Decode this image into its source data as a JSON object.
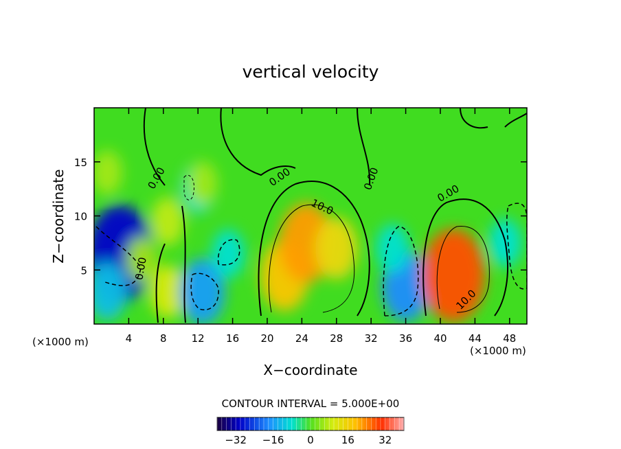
{
  "chart_data": {
    "type": "heatmap",
    "title": "vertical velocity",
    "xlabel": "X−coordinate",
    "ylabel": "Z−coordinate",
    "x_unit_left": "(×1000 m)",
    "x_unit_right": "(×1000 m)",
    "xlim": [
      0,
      50
    ],
    "ylim": [
      0,
      20
    ],
    "x_ticks": [
      4,
      8,
      12,
      16,
      20,
      24,
      28,
      32,
      36,
      40,
      44,
      48
    ],
    "y_ticks": [
      5,
      10,
      15
    ],
    "contour_interval_label": "CONTOUR INTERVAL = 5.000E+00",
    "contour_labels": [
      "0.00",
      "0.00",
      "0.00",
      "0.00",
      "0.00",
      "10.0",
      "10.0"
    ],
    "colorbar": {
      "range": [
        -40,
        40
      ],
      "ticks": [
        "−32",
        "−16",
        "0",
        "16",
        "32"
      ],
      "colormap": "rainbow"
    },
    "features": [
      {
        "x": 3.0,
        "z": 6.5,
        "value": -30
      },
      {
        "x": 1.5,
        "z": 3.0,
        "value": -12
      },
      {
        "x": 1.5,
        "z": 14.0,
        "value": 6
      },
      {
        "x": 5.5,
        "z": 6.0,
        "value": 6
      },
      {
        "x": 8.5,
        "z": 9.5,
        "value": 8
      },
      {
        "x": 8.5,
        "z": 3.0,
        "value": 10
      },
      {
        "x": 12.0,
        "z": 12.5,
        "value": -8
      },
      {
        "x": 12.5,
        "z": 13.0,
        "value": 6
      },
      {
        "x": 12.5,
        "z": 3.0,
        "value": -16
      },
      {
        "x": 15.5,
        "z": 6.5,
        "value": -8
      },
      {
        "x": 22.0,
        "z": 4.5,
        "value": 18
      },
      {
        "x": 24.5,
        "z": 7.5,
        "value": 22
      },
      {
        "x": 28.0,
        "z": 7.0,
        "value": 14
      },
      {
        "x": 36.0,
        "z": 3.5,
        "value": -18
      },
      {
        "x": 34.5,
        "z": 7.0,
        "value": -8
      },
      {
        "x": 41.5,
        "z": 4.5,
        "value": 28
      },
      {
        "x": 47.5,
        "z": 7.5,
        "value": -8
      }
    ]
  }
}
